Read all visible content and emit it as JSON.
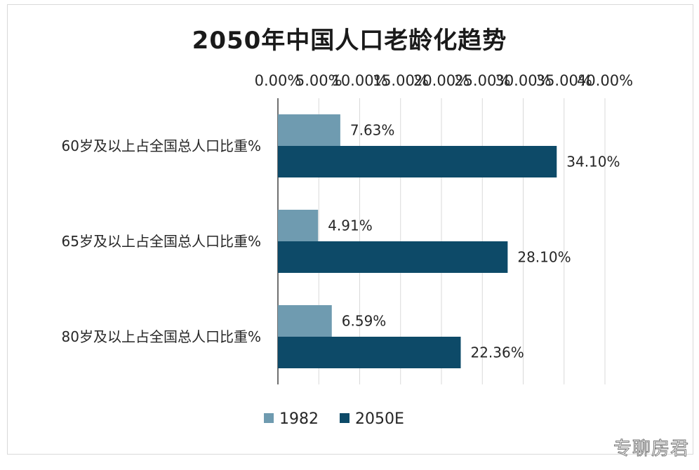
{
  "chart_data": {
    "type": "bar",
    "orientation": "horizontal",
    "title": "2050年中国人口老龄化趋势",
    "categories": [
      "60岁及以上占全国总人口比重%",
      "65岁及以上占全国总人口比重%",
      "80岁及以上占全国总人口比重%"
    ],
    "series": [
      {
        "name": "1982",
        "values": [
          7.63,
          4.91,
          6.59
        ],
        "labels": [
          "7.63%",
          "4.91%",
          "6.59%"
        ],
        "color": "#6f9bb0"
      },
      {
        "name": "2050E",
        "values": [
          34.1,
          28.1,
          22.36
        ],
        "labels": [
          "34.10%",
          "28.10%",
          "22.36%"
        ],
        "color": "#0d4a68"
      }
    ],
    "xlim": [
      0,
      40
    ],
    "x_ticks": [
      0,
      5,
      10,
      15,
      20,
      25,
      30,
      35,
      40
    ],
    "x_tick_labels": [
      "0.00%",
      "5.00%",
      "10.00%",
      "15.00%",
      "20.00%",
      "25.00%",
      "30.00%",
      "35.00%",
      "40.00%"
    ],
    "x_axis_position": "top",
    "grid": true,
    "legend_position": "bottom"
  },
  "watermark": "专聊房君"
}
